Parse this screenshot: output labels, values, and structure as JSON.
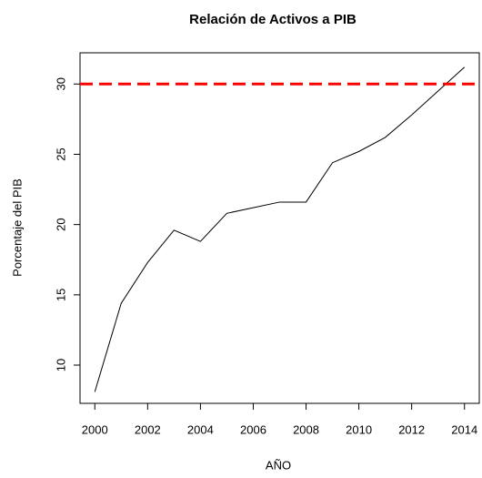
{
  "chart_data": {
    "type": "line",
    "title": "Relación de Activos a PIB",
    "x_label": "AÑO",
    "y_label": "Porcentaje del PIB",
    "x": [
      2000,
      2001,
      2002,
      2003,
      2004,
      2005,
      2006,
      2007,
      2008,
      2009,
      2010,
      2011,
      2012,
      2013,
      2014
    ],
    "values": [
      8.1,
      14.4,
      17.3,
      19.6,
      18.8,
      20.8,
      21.2,
      21.6,
      21.6,
      24.4,
      25.2,
      26.2,
      27.8,
      29.5,
      31.2
    ],
    "color": "#000000",
    "xlim": [
      1999.44,
      2014.56
    ],
    "xticks": [
      2000,
      2002,
      2004,
      2006,
      2008,
      2010,
      2012,
      2014
    ],
    "ylim": [
      7.28,
      32.22
    ],
    "yticks": [
      10,
      15,
      20,
      25,
      30
    ],
    "hline": {
      "value": 30,
      "color": "#ff0000"
    },
    "grid": false
  }
}
